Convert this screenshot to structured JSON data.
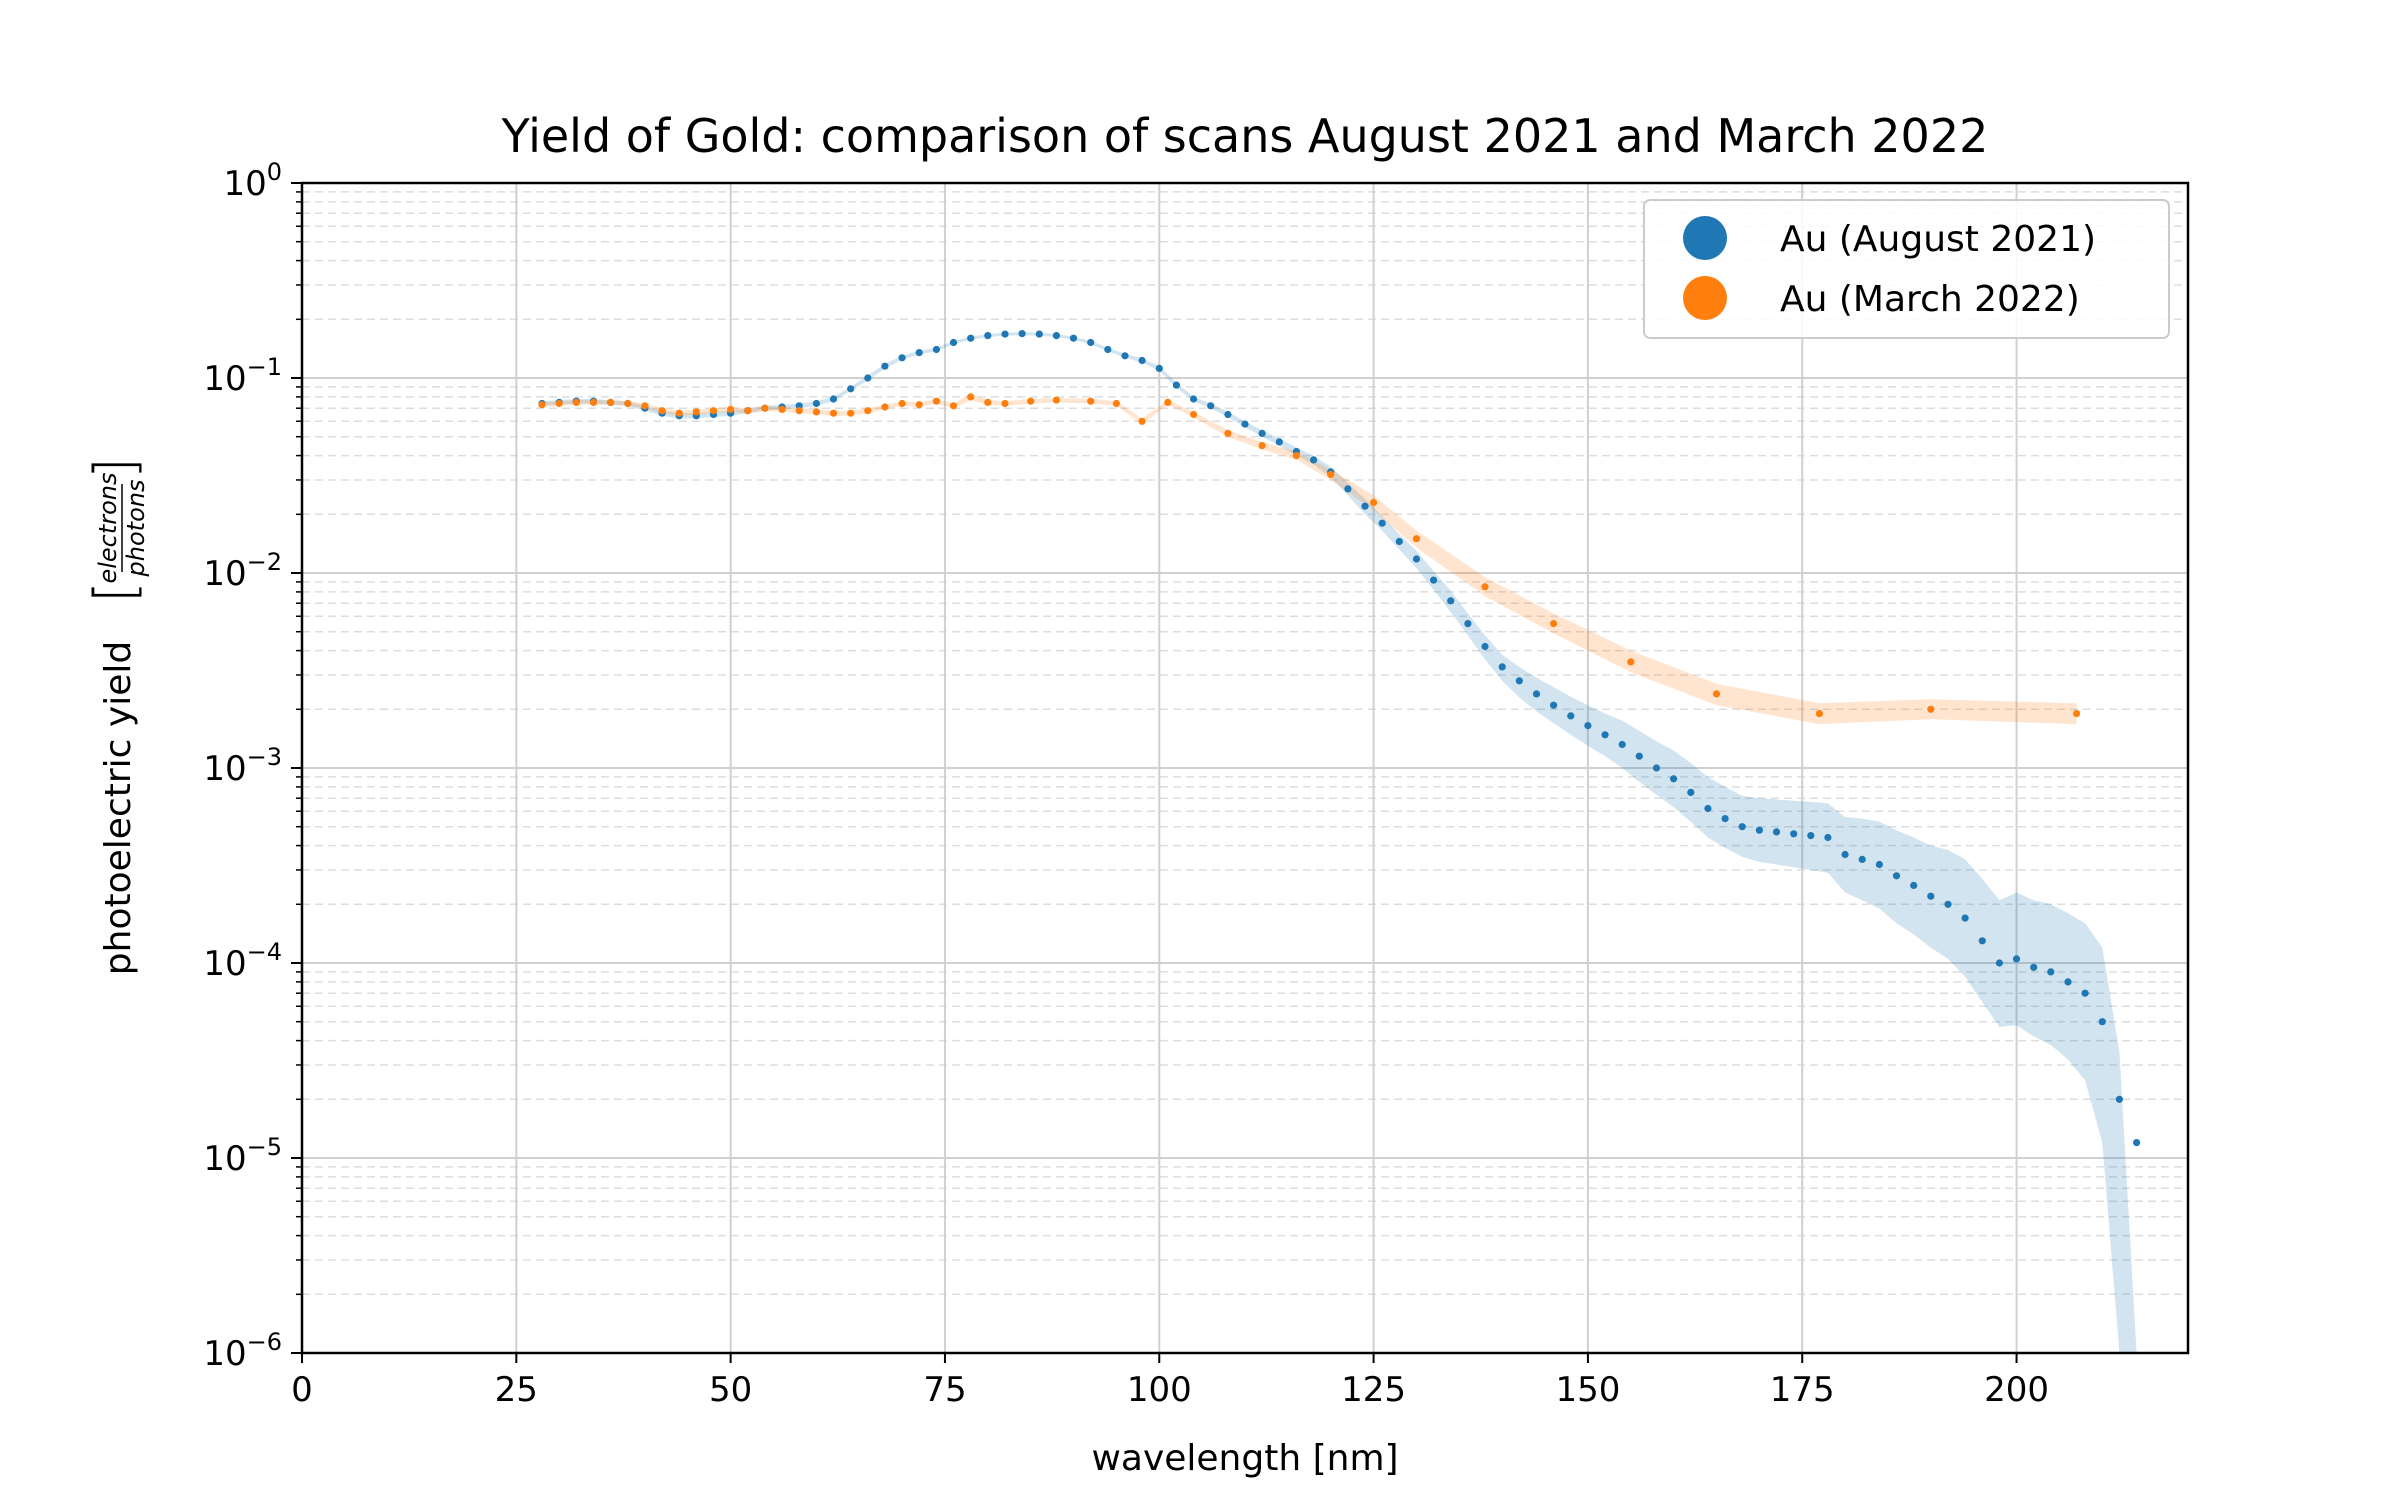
{
  "chart_data": {
    "type": "scatter",
    "title": "Yield of Gold: comparison of scans August 2021 and March 2022",
    "xlabel": "wavelength [nm]",
    "ylabel": "photoelectric yield",
    "ylabel_unit_numerator": "electrons",
    "ylabel_unit_denominator": "photons",
    "xlim": [
      0,
      220
    ],
    "ylim": [
      1e-06,
      1
    ],
    "yscale": "log",
    "grid": true,
    "legend_position": "top-right",
    "x_ticks": [
      0,
      25,
      50,
      75,
      100,
      125,
      150,
      175,
      200
    ],
    "x_tick_labels": [
      "0",
      "25",
      "50",
      "75",
      "100",
      "125",
      "150",
      "175",
      "200"
    ],
    "y_ticks": [
      {
        "value": 1e-06,
        "base": "10",
        "exp": "−6"
      },
      {
        "value": 1e-05,
        "base": "10",
        "exp": "−5"
      },
      {
        "value": 0.0001,
        "base": "10",
        "exp": "−4"
      },
      {
        "value": 0.001,
        "base": "10",
        "exp": "−3"
      },
      {
        "value": 0.01,
        "base": "10",
        "exp": "−2"
      },
      {
        "value": 0.1,
        "base": "10",
        "exp": "−1"
      },
      {
        "value": 1,
        "base": "10",
        "exp": "0"
      }
    ],
    "series": [
      {
        "name": "Au (August 2021)",
        "color": "#1f77b4",
        "x": [
          28,
          30,
          32,
          34,
          36,
          38,
          40,
          42,
          44,
          46,
          48,
          50,
          52,
          54,
          56,
          58,
          60,
          62,
          64,
          66,
          68,
          70,
          72,
          74,
          76,
          78,
          80,
          82,
          84,
          86,
          88,
          90,
          92,
          94,
          96,
          98,
          100,
          102,
          104,
          106,
          108,
          110,
          112,
          114,
          116,
          118,
          120,
          122,
          124,
          126,
          128,
          130,
          132,
          134,
          136,
          138,
          140,
          142,
          144,
          146,
          148,
          150,
          152,
          154,
          156,
          158,
          160,
          162,
          164,
          166,
          168,
          170,
          172,
          174,
          176,
          178,
          180,
          182,
          184,
          186,
          188,
          190,
          192,
          194,
          196,
          198,
          200,
          202,
          204,
          206,
          208,
          210,
          212,
          214
        ],
        "y": [
          0.074,
          0.075,
          0.076,
          0.076,
          0.075,
          0.074,
          0.07,
          0.066,
          0.064,
          0.064,
          0.065,
          0.066,
          0.068,
          0.07,
          0.071,
          0.072,
          0.074,
          0.078,
          0.088,
          0.1,
          0.115,
          0.127,
          0.135,
          0.14,
          0.152,
          0.16,
          0.165,
          0.168,
          0.169,
          0.168,
          0.165,
          0.16,
          0.152,
          0.14,
          0.13,
          0.123,
          0.112,
          0.092,
          0.078,
          0.072,
          0.065,
          0.058,
          0.052,
          0.047,
          0.042,
          0.038,
          0.033,
          0.027,
          0.022,
          0.018,
          0.0145,
          0.0118,
          0.0092,
          0.0072,
          0.0055,
          0.0042,
          0.0033,
          0.0028,
          0.0024,
          0.0021,
          0.00185,
          0.00165,
          0.00148,
          0.00132,
          0.00115,
          0.001,
          0.00088,
          0.00075,
          0.00062,
          0.00055,
          0.0005,
          0.00048,
          0.00047,
          0.00046,
          0.00045,
          0.00044,
          0.00036,
          0.00034,
          0.00032,
          0.00028,
          0.00025,
          0.00022,
          0.0002,
          0.00017,
          0.00013,
          0.0001,
          0.000105,
          9.5e-05,
          9e-05,
          8e-05,
          7e-05,
          5e-05,
          2e-05,
          1.2e-05
        ],
        "band_lower": [
          0.072,
          0.073,
          0.074,
          0.074,
          0.073,
          0.072,
          0.068,
          0.064,
          0.062,
          0.062,
          0.063,
          0.064,
          0.066,
          0.068,
          0.069,
          0.07,
          0.072,
          0.076,
          0.086,
          0.097,
          0.112,
          0.124,
          0.132,
          0.137,
          0.149,
          0.157,
          0.162,
          0.165,
          0.166,
          0.165,
          0.162,
          0.157,
          0.149,
          0.137,
          0.127,
          0.12,
          0.109,
          0.089,
          0.076,
          0.07,
          0.063,
          0.056,
          0.05,
          0.045,
          0.04,
          0.036,
          0.031,
          0.025,
          0.02,
          0.0165,
          0.0132,
          0.0106,
          0.0082,
          0.0063,
          0.0048,
          0.0036,
          0.0028,
          0.0023,
          0.00195,
          0.0017,
          0.00148,
          0.0013,
          0.00115,
          0.001,
          0.00085,
          0.00073,
          0.00063,
          0.00053,
          0.00044,
          0.00039,
          0.00035,
          0.00033,
          0.00032,
          0.00031,
          0.0003,
          0.00029,
          0.00023,
          0.00021,
          0.00019,
          0.00016,
          0.00014,
          0.00012,
          0.000105,
          8.5e-05,
          6.3e-05,
          4.7e-05,
          4.8e-05,
          4.2e-05,
          3.8e-05,
          3.2e-05,
          2.5e-05,
          1.2e-05,
          1e-06,
          1e-06
        ],
        "band_upper": [
          0.076,
          0.077,
          0.078,
          0.078,
          0.077,
          0.076,
          0.072,
          0.068,
          0.066,
          0.066,
          0.067,
          0.068,
          0.07,
          0.072,
          0.073,
          0.074,
          0.076,
          0.08,
          0.09,
          0.103,
          0.118,
          0.13,
          0.138,
          0.143,
          0.155,
          0.163,
          0.168,
          0.171,
          0.172,
          0.171,
          0.168,
          0.163,
          0.155,
          0.143,
          0.133,
          0.126,
          0.115,
          0.095,
          0.08,
          0.074,
          0.067,
          0.06,
          0.054,
          0.049,
          0.044,
          0.04,
          0.035,
          0.029,
          0.024,
          0.0196,
          0.0158,
          0.013,
          0.0102,
          0.0081,
          0.0062,
          0.0048,
          0.0038,
          0.0033,
          0.0029,
          0.0026,
          0.00232,
          0.0021,
          0.0019,
          0.00175,
          0.00155,
          0.00137,
          0.00123,
          0.00106,
          0.0009,
          0.0008,
          0.00072,
          0.0007,
          0.00069,
          0.00068,
          0.00067,
          0.00066,
          0.00056,
          0.00055,
          0.00053,
          0.00048,
          0.00044,
          0.0004,
          0.00038,
          0.00034,
          0.00027,
          0.00021,
          0.00023,
          0.00021,
          0.0002,
          0.00018,
          0.00016,
          0.00012,
          3.5e-05,
          1e-06
        ]
      },
      {
        "name": "Au (March 2022)",
        "color": "#ff7f0e",
        "x": [
          28,
          30,
          32,
          34,
          36,
          38,
          40,
          42,
          44,
          46,
          48,
          50,
          52,
          54,
          56,
          58,
          60,
          62,
          64,
          66,
          68,
          70,
          72,
          74,
          76,
          78,
          80,
          82,
          85,
          88,
          92,
          95,
          98,
          101,
          104,
          108,
          112,
          116,
          120,
          125,
          130,
          138,
          146,
          155,
          165,
          177,
          190,
          207
        ],
        "y": [
          0.073,
          0.074,
          0.075,
          0.075,
          0.075,
          0.074,
          0.072,
          0.068,
          0.066,
          0.067,
          0.068,
          0.069,
          0.068,
          0.07,
          0.069,
          0.068,
          0.067,
          0.066,
          0.066,
          0.068,
          0.071,
          0.074,
          0.073,
          0.076,
          0.072,
          0.08,
          0.075,
          0.074,
          0.076,
          0.077,
          0.076,
          0.074,
          0.06,
          0.075,
          0.065,
          0.052,
          0.045,
          0.04,
          0.032,
          0.023,
          0.015,
          0.0085,
          0.0055,
          0.0035,
          0.0024,
          0.0019,
          0.002,
          0.0019
        ],
        "band_lower": [
          0.071,
          0.072,
          0.073,
          0.073,
          0.073,
          0.072,
          0.07,
          0.066,
          0.064,
          0.065,
          0.066,
          0.067,
          0.066,
          0.068,
          0.067,
          0.066,
          0.065,
          0.064,
          0.064,
          0.066,
          0.069,
          0.072,
          0.071,
          0.074,
          0.07,
          0.077,
          0.073,
          0.072,
          0.074,
          0.075,
          0.074,
          0.072,
          0.058,
          0.073,
          0.063,
          0.05,
          0.043,
          0.038,
          0.03,
          0.021,
          0.0135,
          0.0076,
          0.0049,
          0.0031,
          0.0021,
          0.00168,
          0.00178,
          0.00168
        ],
        "band_upper": [
          0.075,
          0.076,
          0.077,
          0.077,
          0.077,
          0.076,
          0.074,
          0.07,
          0.068,
          0.069,
          0.07,
          0.071,
          0.07,
          0.072,
          0.071,
          0.07,
          0.069,
          0.068,
          0.068,
          0.07,
          0.073,
          0.076,
          0.075,
          0.078,
          0.074,
          0.083,
          0.077,
          0.076,
          0.078,
          0.079,
          0.078,
          0.076,
          0.062,
          0.077,
          0.067,
          0.054,
          0.047,
          0.042,
          0.034,
          0.025,
          0.0165,
          0.0095,
          0.0062,
          0.004,
          0.0027,
          0.00215,
          0.00225,
          0.00215
        ]
      }
    ]
  }
}
